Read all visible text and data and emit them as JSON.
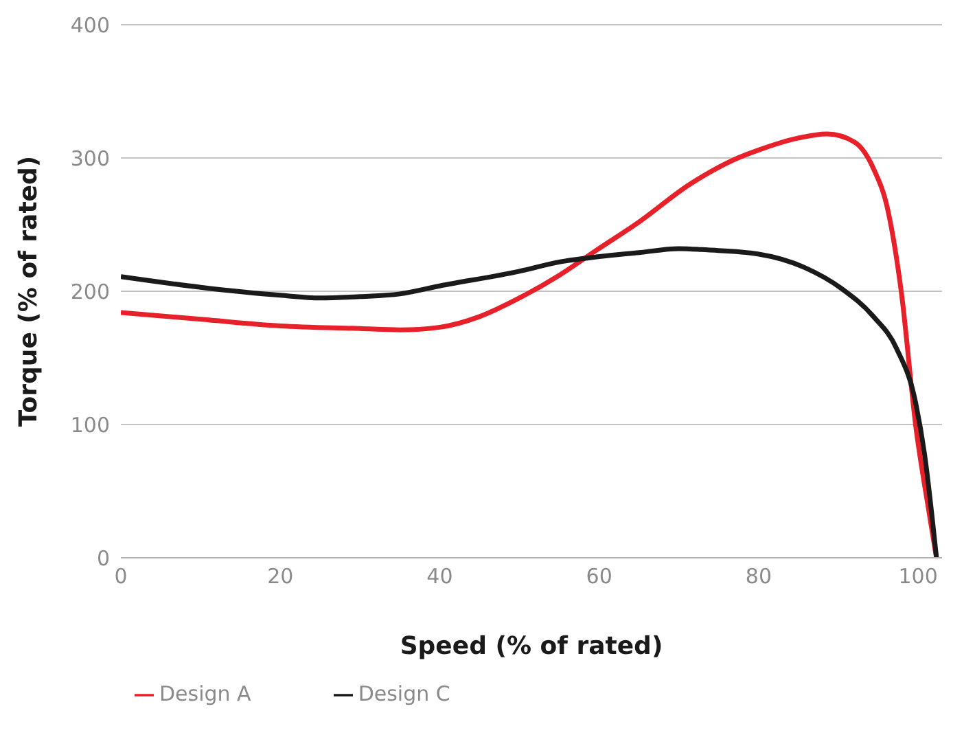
{
  "chart_data": {
    "type": "line",
    "xlabel": "Speed (% of rated)",
    "ylabel": "Torque (% of rated)",
    "xlim": [
      0,
      103
    ],
    "xticks": [
      0,
      20,
      40,
      60,
      80,
      100
    ],
    "ylim": [
      0,
      400
    ],
    "yticks": [
      0,
      100,
      200,
      300,
      400
    ],
    "grid": "y",
    "legend": "bottom left",
    "marker": "none",
    "line_style": "solid",
    "series": [
      {
        "name": "Design A",
        "color": "#e8202a",
        "x": [
          0,
          10,
          20,
          30,
          35,
          40,
          45,
          50,
          55,
          59.7,
          65,
          71.3,
          77,
          80,
          85,
          88.6,
          92,
          94.4,
          96.2,
          97.9,
          99.7,
          101.4,
          102.3
        ],
        "values": [
          184,
          179,
          174,
          172,
          171,
          173,
          181,
          195,
          212,
          231,
          252,
          280,
          299,
          306,
          315,
          318,
          312,
          292,
          261,
          199,
          99,
          33,
          0
        ]
      },
      {
        "name": "Design C",
        "color": "#1a1a1a",
        "x": [
          0,
          10,
          20,
          25,
          30,
          35,
          40,
          50,
          55,
          60,
          65,
          70,
          73.6,
          79.9,
          85.7,
          90.4,
          94.4,
          97.3,
          99.7,
          100.8,
          102.3
        ],
        "values": [
          211,
          203,
          197,
          195,
          196,
          198,
          204,
          215,
          222,
          226,
          229,
          232,
          231,
          228,
          218,
          202,
          181,
          157,
          116,
          78,
          0
        ]
      }
    ]
  }
}
